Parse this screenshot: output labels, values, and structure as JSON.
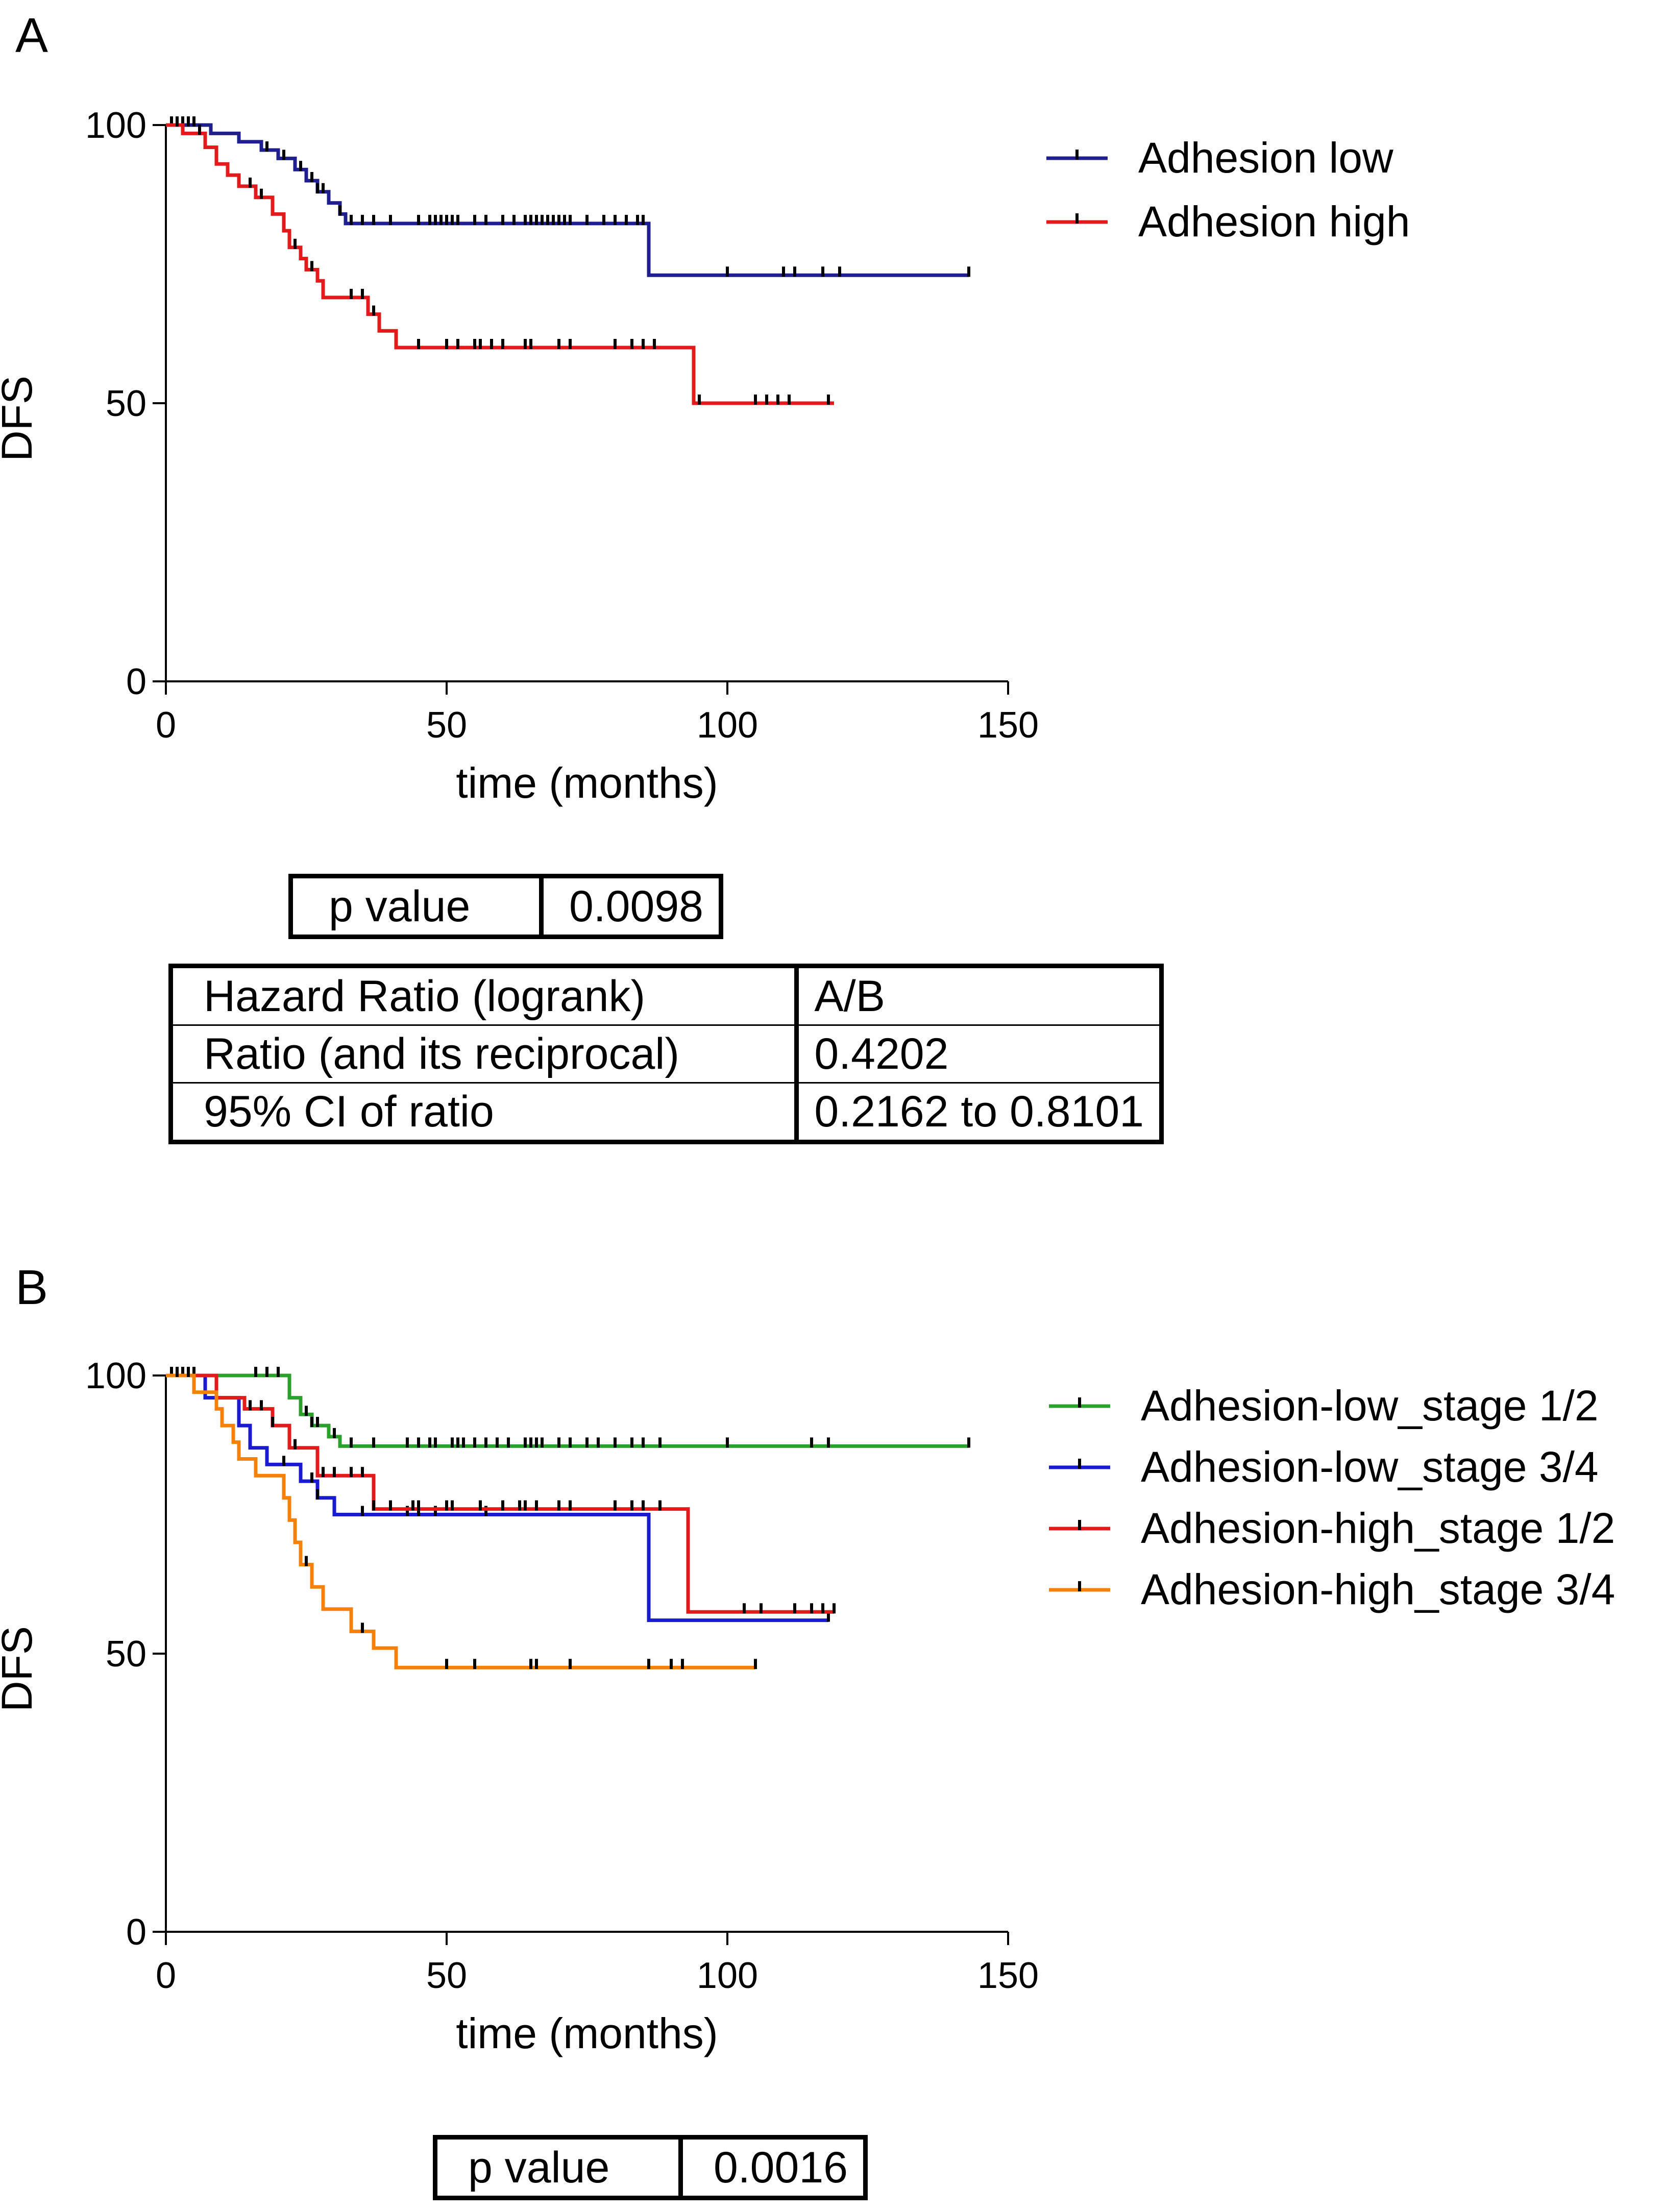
{
  "chart_data": [
    {
      "panel": "A",
      "type": "line",
      "subtype": "kaplan-meier",
      "xlabel": "time (months)",
      "ylabel": "DFS",
      "xlim": [
        0,
        150
      ],
      "ylim": [
        0,
        100
      ],
      "xticks": [
        0,
        50,
        100,
        150
      ],
      "yticks": [
        0,
        50,
        100
      ],
      "legend_position": "top-right",
      "series": [
        {
          "name": "Adhesion low",
          "color": "#1f1f8f",
          "steps": [
            [
              0,
              100
            ],
            [
              8,
              98.5
            ],
            [
              13,
              97
            ],
            [
              17,
              95.5
            ],
            [
              20,
              94
            ],
            [
              23,
              92
            ],
            [
              25,
              90
            ],
            [
              27,
              88
            ],
            [
              29,
              86
            ],
            [
              31,
              84
            ],
            [
              32,
              82.3
            ],
            [
              86,
              73
            ],
            [
              143,
              73
            ]
          ],
          "censor": [
            1,
            2,
            3,
            4,
            5,
            18,
            21,
            24,
            26,
            27,
            28,
            31,
            33,
            35,
            37,
            40,
            45,
            47,
            48,
            49,
            50,
            51,
            52,
            55,
            57,
            60,
            62,
            64,
            65,
            66,
            67,
            68,
            69,
            70,
            71,
            72,
            75,
            78,
            80,
            82,
            84,
            85,
            100,
            110,
            112,
            117,
            120,
            143
          ]
        },
        {
          "name": "Adhesion high",
          "color": "#e31a1c",
          "steps": [
            [
              0,
              100
            ],
            [
              3,
              98.5
            ],
            [
              7,
              96
            ],
            [
              9,
              93
            ],
            [
              11,
              91
            ],
            [
              13,
              89
            ],
            [
              16,
              87
            ],
            [
              19,
              84
            ],
            [
              21,
              81
            ],
            [
              22,
              78
            ],
            [
              24,
              76
            ],
            [
              25,
              74
            ],
            [
              27,
              72
            ],
            [
              28,
              69
            ],
            [
              36,
              66
            ],
            [
              38,
              63
            ],
            [
              41,
              60
            ],
            [
              94,
              50
            ],
            [
              119,
              50
            ]
          ],
          "censor": [
            2,
            6,
            15,
            17,
            23,
            26,
            33,
            35,
            37,
            45,
            50,
            52,
            55,
            56,
            58,
            60,
            64,
            65,
            70,
            72,
            80,
            83,
            85,
            87,
            95,
            105,
            107,
            109,
            111,
            118
          ]
        }
      ]
    },
    {
      "panel": "B",
      "type": "line",
      "subtype": "kaplan-meier",
      "xlabel": "time (months)",
      "ylabel": "DFS",
      "xlim": [
        0,
        150
      ],
      "ylim": [
        0,
        100
      ],
      "xticks": [
        0,
        50,
        100,
        150
      ],
      "yticks": [
        0,
        50,
        100
      ],
      "legend_position": "top-right",
      "series": [
        {
          "name": "Adhesion-low_stage 1/2",
          "color": "#2ca02c",
          "steps": [
            [
              0,
              100
            ],
            [
              22,
              96
            ],
            [
              24,
              93
            ],
            [
              26,
              91
            ],
            [
              29,
              89
            ],
            [
              31,
              87.3
            ],
            [
              143,
              87.3
            ]
          ],
          "censor": [
            1,
            2,
            3,
            4,
            5,
            16,
            18,
            20,
            25,
            26,
            27,
            30,
            33,
            37,
            43,
            45,
            47,
            48,
            51,
            52,
            53,
            55,
            57,
            59,
            61,
            64,
            65,
            66,
            67,
            70,
            72,
            75,
            77,
            80,
            83,
            85,
            88,
            100,
            115,
            118,
            143
          ]
        },
        {
          "name": "Adhesion-low_stage 3/4",
          "color": "#1a1ad0",
          "steps": [
            [
              0,
              100
            ],
            [
              7,
              96
            ],
            [
              13,
              91
            ],
            [
              15,
              87
            ],
            [
              18,
              84
            ],
            [
              24,
              81
            ],
            [
              27,
              78
            ],
            [
              30,
              75
            ],
            [
              86,
              56
            ],
            [
              118,
              56
            ]
          ],
          "censor": [
            2,
            4,
            5,
            21,
            26,
            27,
            35,
            43,
            45,
            48,
            57,
            118
          ]
        },
        {
          "name": "Adhesion-high_stage 1/2",
          "color": "#e31a1c",
          "steps": [
            [
              0,
              100
            ],
            [
              9,
              96
            ],
            [
              14,
              94
            ],
            [
              19,
              91
            ],
            [
              22,
              87
            ],
            [
              27,
              82
            ],
            [
              37,
              76
            ],
            [
              93,
              57.5
            ],
            [
              119,
              57.5
            ]
          ],
          "censor": [
            15,
            17,
            19,
            23,
            28,
            30,
            33,
            35,
            37,
            40,
            44,
            45,
            50,
            51,
            56,
            60,
            63,
            64,
            66,
            70,
            72,
            80,
            83,
            85,
            88,
            103,
            106,
            112,
            115,
            117,
            119
          ]
        },
        {
          "name": "Adhesion-high_stage 3/4",
          "color": "#f5800a",
          "steps": [
            [
              0,
              100
            ],
            [
              5,
              97
            ],
            [
              9,
              94
            ],
            [
              10,
              91
            ],
            [
              12,
              88
            ],
            [
              13,
              85
            ],
            [
              16,
              82
            ],
            [
              21,
              78
            ],
            [
              22,
              74
            ],
            [
              23,
              70
            ],
            [
              24,
              66
            ],
            [
              26,
              62
            ],
            [
              28,
              58
            ],
            [
              33,
              54
            ],
            [
              37,
              51
            ],
            [
              41,
              47.5
            ],
            [
              105,
              47.5
            ]
          ],
          "censor": [
            2,
            4,
            25,
            35,
            50,
            55,
            65,
            66,
            72,
            86,
            90,
            92,
            105
          ]
        }
      ]
    }
  ],
  "tables": {
    "a_pvalue": {
      "label": "p value",
      "value": "0.0098"
    },
    "a_hazard": [
      [
        "Hazard Ratio (logrank)",
        "A/B"
      ],
      [
        "Ratio (and its reciprocal)",
        "0.4202"
      ],
      [
        "95% CI of ratio",
        "0.2162 to 0.8101"
      ]
    ],
    "b_pvalue": {
      "label": "p value",
      "value": "0.0016"
    }
  }
}
